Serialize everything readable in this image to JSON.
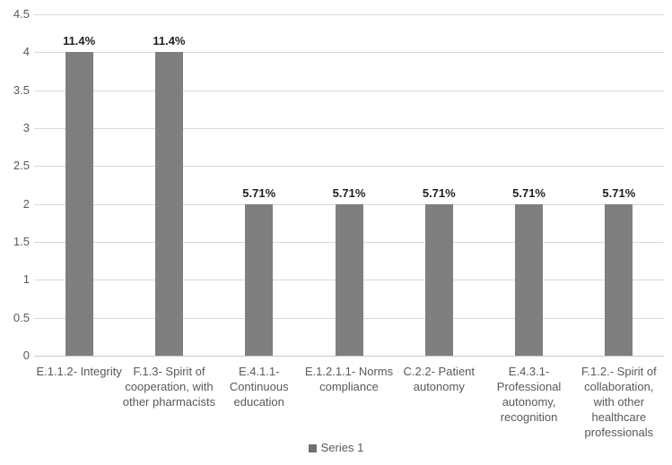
{
  "chart_data": {
    "type": "bar",
    "title": "",
    "xlabel": "",
    "ylabel": "",
    "categories": [
      "E.1.1.2- Integrity",
      "F.1.3- Spirit of cooperation, with other pharmacists",
      "E.4.1.1- Continuous education",
      "E.1.2.1.1- Norms compliance",
      "C.2.2- Patient autonomy",
      "E.4.3.1- Professional autonomy, recognition",
      "F.1.2.- Spirit of collaboration, with other healthcare professionals"
    ],
    "category_lines": [
      [
        "E.1.1.2- Integrity"
      ],
      [
        "F.1.3- Spirit of",
        "cooperation, with",
        "other pharmacists"
      ],
      [
        "E.4.1.1-",
        "Continuous",
        "education"
      ],
      [
        "E.1.2.1.1- Norms",
        "compliance"
      ],
      [
        "C.2.2- Patient",
        "autonomy"
      ],
      [
        "E.4.3.1-",
        "Professional",
        "autonomy,",
        "recognition"
      ],
      [
        "F.1.2.- Spirit of",
        "collaboration,",
        "with other",
        "healthcare",
        "professionals"
      ]
    ],
    "values": [
      4,
      4,
      2,
      2,
      2,
      2,
      2
    ],
    "bar_labels": [
      "11.4%",
      "11.4%",
      "5.71%",
      "5.71%",
      "5.71%",
      "5.71%",
      "5.71%"
    ],
    "ylim": [
      0,
      4.5
    ],
    "yticks": [
      "0",
      "0.5",
      "1",
      "1.5",
      "2",
      "2.5",
      "3",
      "3.5",
      "4",
      "4.5"
    ],
    "grid": "horizontal",
    "legend": {
      "position": "bottom-center",
      "entries": [
        {
          "label": "Series 1",
          "color": "#6f6f6f"
        }
      ]
    },
    "colors": {
      "bar": "#7f7f7f",
      "gridline": "#d9d9d9",
      "axis_line": "#c9c9c9",
      "tick_text": "#595959",
      "category_text": "#595959",
      "value_label_text": "#1f1f1f",
      "legend_text": "#595959",
      "background": "#ffffff"
    }
  }
}
